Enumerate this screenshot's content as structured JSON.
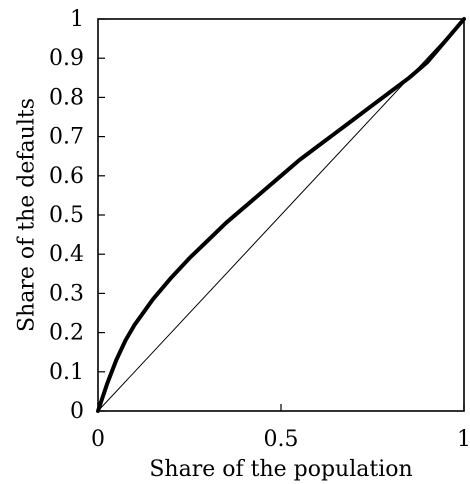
{
  "chart_data": {
    "type": "line",
    "title": "",
    "xlabel": "Share of the population",
    "ylabel": "Share of the defaults",
    "xlim": [
      0,
      1
    ],
    "ylim": [
      0,
      1
    ],
    "xticks": [
      {
        "value": 0,
        "label": "0"
      },
      {
        "value": 0.5,
        "label": "0.5"
      },
      {
        "value": 1,
        "label": "1"
      }
    ],
    "yticks": [
      {
        "value": 0,
        "label": "0"
      },
      {
        "value": 0.1,
        "label": "0.1"
      },
      {
        "value": 0.2,
        "label": "0.2"
      },
      {
        "value": 0.3,
        "label": "0.3"
      },
      {
        "value": 0.4,
        "label": "0.4"
      },
      {
        "value": 0.5,
        "label": "0.5"
      },
      {
        "value": 0.6,
        "label": "0.6"
      },
      {
        "value": 0.7,
        "label": "0.7"
      },
      {
        "value": 0.8,
        "label": "0.8"
      },
      {
        "value": 0.9,
        "label": "0.9"
      },
      {
        "value": 1,
        "label": "1"
      }
    ],
    "grid": false,
    "legend": "none",
    "series": [
      {
        "color": "#000000",
        "style": "thick",
        "x": [
          0,
          0.025,
          0.05,
          0.075,
          0.1,
          0.15,
          0.2,
          0.25,
          0.3,
          0.35,
          0.4,
          0.45,
          0.5,
          0.55,
          0.6,
          0.65,
          0.7,
          0.75,
          0.8,
          0.85,
          0.9,
          0.95,
          1
        ],
        "y": [
          0,
          0.07,
          0.13,
          0.18,
          0.22,
          0.285,
          0.34,
          0.39,
          0.435,
          0.48,
          0.52,
          0.56,
          0.6,
          0.64,
          0.675,
          0.71,
          0.745,
          0.78,
          0.815,
          0.85,
          0.89,
          0.945,
          1
        ]
      },
      {
        "color": "#000000",
        "style": "thin",
        "x": [
          0,
          1
        ],
        "y": [
          0,
          1
        ]
      }
    ]
  }
}
